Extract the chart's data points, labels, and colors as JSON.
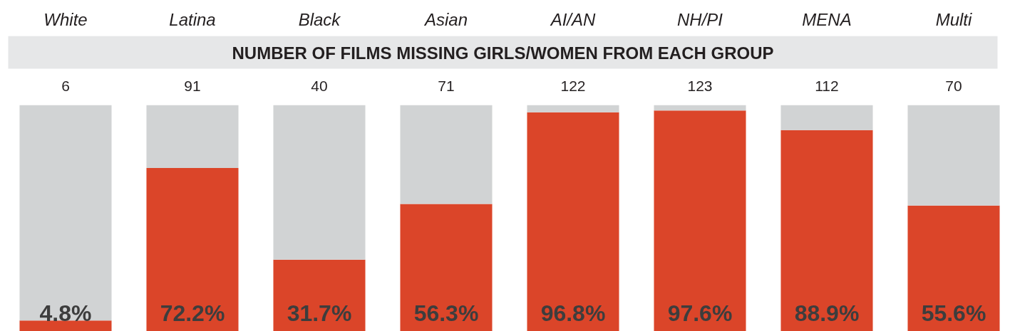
{
  "chart_data": {
    "type": "bar",
    "title": "NUMBER OF FILMS MISSING GIRLS/WOMEN FROM EACH GROUP",
    "categories": [
      "White",
      "Latina",
      "Black",
      "Asian",
      "AI/AN",
      "NH/PI",
      "MENA",
      "Multi"
    ],
    "stacked": true,
    "series": [
      {
        "color": "#db4529",
        "values": [
          4.8,
          72.2,
          31.7,
          56.3,
          96.8,
          97.6,
          88.9,
          55.6
        ],
        "value_labels": [
          "4.8%",
          "72.2%",
          "31.7%",
          "56.3%",
          "96.8%",
          "97.6%",
          "88.9%",
          "55.6%"
        ]
      },
      {
        "color": "#d1d3d4",
        "values": [
          95.2,
          27.8,
          68.3,
          43.7,
          3.2,
          2.4,
          11.1,
          44.4
        ]
      }
    ],
    "ylim": [
      0,
      100
    ],
    "tick_labels": "x",
    "annotations": [
      {
        "text": "6",
        "x": "White",
        "y": 100
      },
      {
        "text": "91",
        "x": "Latina",
        "y": 100
      },
      {
        "text": "40",
        "x": "Black",
        "y": 100
      },
      {
        "text": "71",
        "x": "Asian",
        "y": 100
      },
      {
        "text": "122",
        "x": "AI/AN",
        "y": 100
      },
      {
        "text": "123",
        "x": "NH/PI",
        "y": 100
      },
      {
        "text": "112",
        "x": "MENA",
        "y": 100
      },
      {
        "text": "70",
        "x": "Multi",
        "y": 100
      }
    ]
  }
}
